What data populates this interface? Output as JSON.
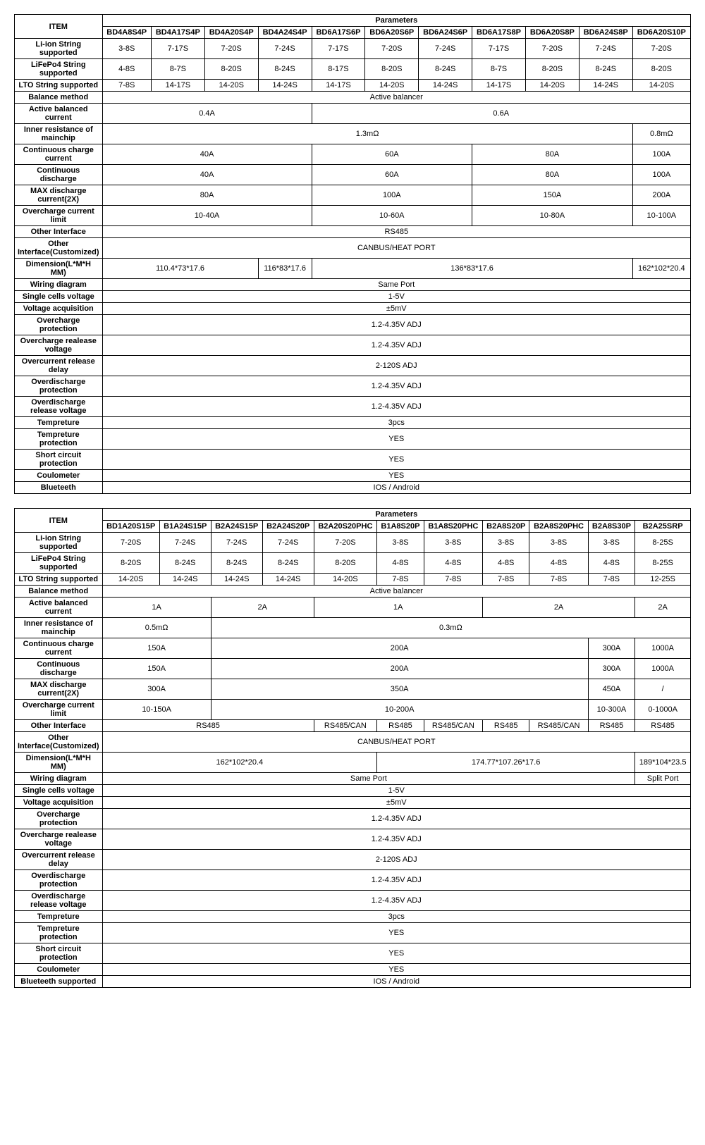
{
  "table1": {
    "header": {
      "item": "ITEM",
      "params": "Parameters",
      "cols": [
        "BD4A8S4P",
        "BD4A17S4P",
        "BD4A20S4P",
        "BD4A24S4P",
        "BD6A17S6P",
        "BD6A20S6P",
        "BD6A24S6P",
        "BD6A17S8P",
        "BD6A20S8P",
        "BD6A24S8P",
        "BD6A20S10P"
      ]
    },
    "rows": [
      {
        "label": "Li-ion String supported",
        "cells": [
          [
            "3-8S",
            1
          ],
          [
            "7-17S",
            1
          ],
          [
            "7-20S",
            1
          ],
          [
            "7-24S",
            1
          ],
          [
            "7-17S",
            1
          ],
          [
            "7-20S",
            1
          ],
          [
            "7-24S",
            1
          ],
          [
            "7-17S",
            1
          ],
          [
            "7-20S",
            1
          ],
          [
            "7-24S",
            1
          ],
          [
            "7-20S",
            1
          ]
        ]
      },
      {
        "label": "LiFePo4 String supported",
        "cells": [
          [
            "4-8S",
            1
          ],
          [
            "8-7S",
            1
          ],
          [
            "8-20S",
            1
          ],
          [
            "8-24S",
            1
          ],
          [
            "8-17S",
            1
          ],
          [
            "8-20S",
            1
          ],
          [
            "8-24S",
            1
          ],
          [
            "8-7S",
            1
          ],
          [
            "8-20S",
            1
          ],
          [
            "8-24S",
            1
          ],
          [
            "8-20S",
            1
          ]
        ]
      },
      {
        "label": "LTO String supported",
        "cells": [
          [
            "7-8S",
            1
          ],
          [
            "14-17S",
            1
          ],
          [
            "14-20S",
            1
          ],
          [
            "14-24S",
            1
          ],
          [
            "14-17S",
            1
          ],
          [
            "14-20S",
            1
          ],
          [
            "14-24S",
            1
          ],
          [
            "14-17S",
            1
          ],
          [
            "14-20S",
            1
          ],
          [
            "14-24S",
            1
          ],
          [
            "14-20S",
            1
          ]
        ]
      },
      {
        "label": "Balance method",
        "cells": [
          [
            "Active balancer",
            11
          ]
        ]
      },
      {
        "label": "Active balanced current",
        "cells": [
          [
            "0.4A",
            4
          ],
          [
            "0.6A",
            7
          ]
        ]
      },
      {
        "label": "Inner resistance of mainchip",
        "cells": [
          [
            "1.3mΩ",
            10
          ],
          [
            "0.8mΩ",
            1
          ]
        ]
      },
      {
        "label": "Continuous charge current",
        "cells": [
          [
            "40A",
            4
          ],
          [
            "60A",
            3
          ],
          [
            "80A",
            3
          ],
          [
            "100A",
            1
          ]
        ]
      },
      {
        "label": "Continuous discharge",
        "cells": [
          [
            "40A",
            4
          ],
          [
            "60A",
            3
          ],
          [
            "80A",
            3
          ],
          [
            "100A",
            1
          ]
        ]
      },
      {
        "label": "MAX discharge current(2X)",
        "cells": [
          [
            "80A",
            4
          ],
          [
            "100A",
            3
          ],
          [
            "150A",
            3
          ],
          [
            "200A",
            1
          ]
        ]
      },
      {
        "label": "Overcharge current limit",
        "cells": [
          [
            "10-40A",
            4
          ],
          [
            "10-60A",
            3
          ],
          [
            "10-80A",
            3
          ],
          [
            "10-100A",
            1
          ]
        ]
      },
      {
        "label": "Other Interface",
        "cells": [
          [
            "RS485",
            11
          ]
        ]
      },
      {
        "label": "Other Interface(Customized)",
        "cells": [
          [
            "CANBUS/HEAT PORT",
            11
          ]
        ]
      },
      {
        "label": "Dimension(L*M*H MM)",
        "cells": [
          [
            "110.4*73*17.6",
            3
          ],
          [
            "116*83*17.6",
            1
          ],
          [
            "136*83*17.6",
            6
          ],
          [
            "162*102*20.4",
            1
          ]
        ]
      },
      {
        "label": "Wiring diagram",
        "cells": [
          [
            "Same Port",
            11
          ]
        ]
      },
      {
        "label": "Single cells voltage",
        "cells": [
          [
            "1-5V",
            11
          ]
        ]
      },
      {
        "label": "Voltage acquisition",
        "cells": [
          [
            "±5mV",
            11
          ]
        ]
      },
      {
        "label": "Overcharge protection",
        "cells": [
          [
            "1.2-4.35V ADJ",
            11
          ]
        ]
      },
      {
        "label": "Overcharge realease voltage",
        "cells": [
          [
            "1.2-4.35V ADJ",
            11
          ]
        ]
      },
      {
        "label": "Overcurrent release delay",
        "cells": [
          [
            "2-120S ADJ",
            11
          ]
        ]
      },
      {
        "label": "Overdischarge protection",
        "cells": [
          [
            "1.2-4.35V ADJ",
            11
          ]
        ]
      },
      {
        "label": "Overdischarge release voltage",
        "cells": [
          [
            "1.2-4.35V ADJ",
            11
          ]
        ]
      },
      {
        "label": "Tempreture",
        "cells": [
          [
            "3pcs",
            11
          ]
        ]
      },
      {
        "label": "Tempreture protection",
        "cells": [
          [
            "YES",
            11
          ]
        ]
      },
      {
        "label": "Short circuit protection",
        "cells": [
          [
            "YES",
            11
          ]
        ]
      },
      {
        "label": "Coulometer",
        "cells": [
          [
            "YES",
            11
          ]
        ]
      },
      {
        "label": "Blueteeth",
        "cells": [
          [
            "IOS / Android",
            11
          ]
        ]
      }
    ]
  },
  "table2": {
    "header": {
      "item": "ITEM",
      "params": "Parameters",
      "cols": [
        "BD1A20S15P",
        "B1A24S15P",
        "B2A24S15P",
        "B2A24S20P",
        "B2A20S20PHC",
        "B1A8S20P",
        "B1A8S20PHC",
        "B2A8S20P",
        "B2A8S20PHC",
        "B2A8S30P",
        "B2A25SRP"
      ]
    },
    "rows": [
      {
        "label": "Li-ion String supported",
        "cells": [
          [
            "7-20S",
            1
          ],
          [
            "7-24S",
            1
          ],
          [
            "7-24S",
            1
          ],
          [
            "7-24S",
            1
          ],
          [
            "7-20S",
            1
          ],
          [
            "3-8S",
            1
          ],
          [
            "3-8S",
            1
          ],
          [
            "3-8S",
            1
          ],
          [
            "3-8S",
            1
          ],
          [
            "3-8S",
            1
          ],
          [
            "8-25S",
            1
          ]
        ]
      },
      {
        "label": "LiFePo4 String supported",
        "cells": [
          [
            "8-20S",
            1
          ],
          [
            "8-24S",
            1
          ],
          [
            "8-24S",
            1
          ],
          [
            "8-24S",
            1
          ],
          [
            "8-20S",
            1
          ],
          [
            "4-8S",
            1
          ],
          [
            "4-8S",
            1
          ],
          [
            "4-8S",
            1
          ],
          [
            "4-8S",
            1
          ],
          [
            "4-8S",
            1
          ],
          [
            "8-25S",
            1
          ]
        ]
      },
      {
        "label": "LTO String supported",
        "cells": [
          [
            "14-20S",
            1
          ],
          [
            "14-24S",
            1
          ],
          [
            "14-24S",
            1
          ],
          [
            "14-24S",
            1
          ],
          [
            "14-20S",
            1
          ],
          [
            "7-8S",
            1
          ],
          [
            "7-8S",
            1
          ],
          [
            "7-8S",
            1
          ],
          [
            "7-8S",
            1
          ],
          [
            "7-8S",
            1
          ],
          [
            "12-25S",
            1
          ]
        ]
      },
      {
        "label": "Balance method",
        "cells": [
          [
            "Active balancer",
            11
          ]
        ]
      },
      {
        "label": "Active balanced current",
        "cells": [
          [
            "1A",
            2
          ],
          [
            "2A",
            2
          ],
          [
            "1A",
            3
          ],
          [
            "2A",
            3
          ],
          [
            "2A",
            1
          ]
        ]
      },
      {
        "label": "Inner resistance of mainchip",
        "cells": [
          [
            "0.5mΩ",
            2
          ],
          [
            "0.3mΩ",
            9
          ]
        ]
      },
      {
        "label": "Continuous charge current",
        "cells": [
          [
            "150A",
            2
          ],
          [
            "200A",
            7
          ],
          [
            "300A",
            1
          ],
          [
            "1000A",
            1
          ]
        ]
      },
      {
        "label": "Continuous discharge",
        "cells": [
          [
            "150A",
            2
          ],
          [
            "200A",
            7
          ],
          [
            "300A",
            1
          ],
          [
            "1000A",
            1
          ]
        ]
      },
      {
        "label": "MAX discharge current(2X)",
        "cells": [
          [
            "300A",
            2
          ],
          [
            "350A",
            7
          ],
          [
            "450A",
            1
          ],
          [
            "/",
            1
          ]
        ]
      },
      {
        "label": "Overcharge current limit",
        "cells": [
          [
            "10-150A",
            2
          ],
          [
            "10-200A",
            7
          ],
          [
            "10-300A",
            1
          ],
          [
            "0-1000A",
            1
          ]
        ]
      },
      {
        "label": "Other Interface",
        "cells": [
          [
            "RS485",
            4
          ],
          [
            "RS485/CAN",
            1
          ],
          [
            "RS485",
            1
          ],
          [
            "RS485/CAN",
            1
          ],
          [
            "RS485",
            1
          ],
          [
            "RS485/CAN",
            1
          ],
          [
            "RS485",
            1
          ],
          [
            "RS485",
            1
          ]
        ]
      },
      {
        "label": "Other Interface(Customized)",
        "cells": [
          [
            "CANBUS/HEAT PORT",
            11
          ]
        ]
      },
      {
        "label": "Dimension(L*M*H MM)",
        "cells": [
          [
            "162*102*20.4",
            5
          ],
          [
            "174.77*107.26*17.6",
            5
          ],
          [
            "189*104*23.5",
            1
          ]
        ]
      },
      {
        "label": "Wiring diagram",
        "cells": [
          [
            "Same Port",
            10
          ],
          [
            "Split Port",
            1
          ]
        ]
      },
      {
        "label": "Single cells voltage",
        "cells": [
          [
            "1-5V",
            11
          ]
        ]
      },
      {
        "label": "Voltage acquisition",
        "cells": [
          [
            "±5mV",
            11
          ]
        ]
      },
      {
        "label": "Overcharge protection",
        "cells": [
          [
            "1.2-4.35V ADJ",
            11
          ]
        ]
      },
      {
        "label": "Overcharge realease voltage",
        "cells": [
          [
            "1.2-4.35V ADJ",
            11
          ]
        ]
      },
      {
        "label": "Overcurrent release delay",
        "cells": [
          [
            "2-120S ADJ",
            11
          ]
        ]
      },
      {
        "label": "Overdischarge protection",
        "cells": [
          [
            "1.2-4.35V ADJ",
            11
          ]
        ]
      },
      {
        "label": "Overdischarge release voltage",
        "cells": [
          [
            "1.2-4.35V ADJ",
            11
          ]
        ]
      },
      {
        "label": "Tempreture",
        "cells": [
          [
            "3pcs",
            11
          ]
        ]
      },
      {
        "label": "Tempreture protection",
        "cells": [
          [
            "YES",
            11
          ]
        ]
      },
      {
        "label": "Short circuit protection",
        "cells": [
          [
            "YES",
            11
          ]
        ]
      },
      {
        "label": "Coulometer",
        "cells": [
          [
            "YES",
            11
          ]
        ]
      },
      {
        "label": "Blueteeth supported",
        "cells": [
          [
            "IOS / Android",
            11
          ]
        ]
      }
    ]
  }
}
